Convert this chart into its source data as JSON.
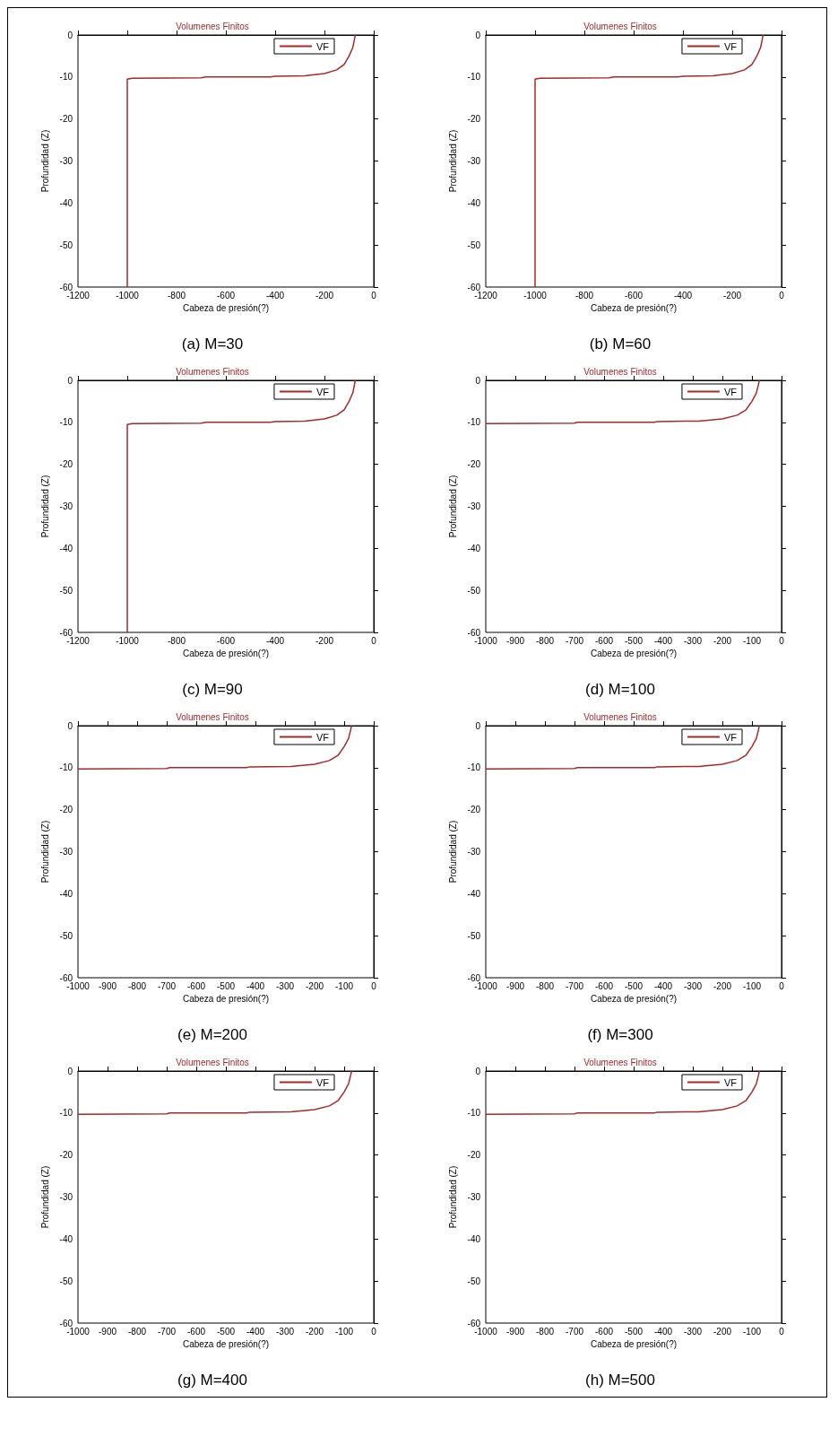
{
  "chart_data": [
    {
      "type": "line",
      "title": "Volumenes Finitos",
      "xlabel": "Cabeza de presión(?)",
      "ylabel": "Profundidad (Z)",
      "annotations": [
        "(a) M=30"
      ],
      "legend": "top right",
      "grid": false,
      "xlim": [
        -1200,
        0
      ],
      "xticks": [
        -1200,
        -1000,
        -800,
        -600,
        -400,
        -200,
        0
      ],
      "ylim": [
        -60,
        0
      ],
      "yticks": [
        -60,
        -50,
        -40,
        -30,
        -20,
        -10,
        0
      ],
      "series": [
        {
          "name": "VF",
          "color": "#a52a2a",
          "x": [
            -1000,
            -1000,
            -980,
            -700,
            -680,
            -420,
            -400,
            -280,
            -200,
            -150,
            -120,
            -100,
            -85,
            -78,
            -75
          ],
          "values": [
            -60,
            -10.5,
            -10.3,
            -10.2,
            -10,
            -10,
            -9.8,
            -9.7,
            -9.2,
            -8.3,
            -7,
            -5,
            -3,
            -1,
            0
          ]
        }
      ]
    },
    {
      "type": "line",
      "title": "Volumenes Finitos",
      "xlabel": "Cabeza de presión(?)",
      "ylabel": "Profundidad (Z)",
      "annotations": [
        "(b) M=60"
      ],
      "legend": "top right",
      "grid": false,
      "xlim": [
        -1200,
        0
      ],
      "xticks": [
        -1200,
        -1000,
        -800,
        -600,
        -400,
        -200,
        0
      ],
      "ylim": [
        -60,
        0
      ],
      "yticks": [
        -60,
        -50,
        -40,
        -30,
        -20,
        -10,
        0
      ],
      "series": [
        {
          "name": "VF",
          "color": "#a52a2a",
          "x": [
            -1000,
            -1000,
            -980,
            -700,
            -680,
            -420,
            -400,
            -280,
            -200,
            -150,
            -120,
            -100,
            -85,
            -78,
            -75
          ],
          "values": [
            -60,
            -10.5,
            -10.3,
            -10.2,
            -10,
            -10,
            -9.8,
            -9.7,
            -9.2,
            -8.3,
            -7,
            -5,
            -3,
            -1,
            0
          ]
        }
      ]
    },
    {
      "type": "line",
      "title": "Volumenes Finitos",
      "xlabel": "Cabeza de presión(?)",
      "ylabel": "Profundidad (Z)",
      "annotations": [
        "(c) M=90"
      ],
      "legend": "top right",
      "grid": false,
      "xlim": [
        -1200,
        0
      ],
      "xticks": [
        -1200,
        -1000,
        -800,
        -600,
        -400,
        -200,
        0
      ],
      "ylim": [
        -60,
        0
      ],
      "yticks": [
        -60,
        -50,
        -40,
        -30,
        -20,
        -10,
        0
      ],
      "series": [
        {
          "name": "VF",
          "color": "#a52a2a",
          "x": [
            -1000,
            -1000,
            -980,
            -700,
            -680,
            -420,
            -400,
            -280,
            -200,
            -150,
            -120,
            -100,
            -85,
            -78,
            -75
          ],
          "values": [
            -60,
            -10.5,
            -10.3,
            -10.2,
            -10,
            -10,
            -9.8,
            -9.7,
            -9.2,
            -8.3,
            -7,
            -5,
            -3,
            -1,
            0
          ]
        }
      ]
    },
    {
      "type": "line",
      "title": "Volumenes Finitos",
      "xlabel": "Cabeza de presión(?)",
      "ylabel": "Profundidad (Z)",
      "annotations": [
        "(d) M=100"
      ],
      "legend": "top right",
      "grid": false,
      "xlim": [
        -1000,
        0
      ],
      "xticks": [
        -1000,
        -900,
        -800,
        -700,
        -600,
        -500,
        -400,
        -300,
        -200,
        -100,
        0
      ],
      "ylim": [
        -60,
        0
      ],
      "yticks": [
        -60,
        -50,
        -40,
        -30,
        -20,
        -10,
        0
      ],
      "series": [
        {
          "name": "VF",
          "color": "#a52a2a",
          "x": [
            -1000,
            -700,
            -690,
            -430,
            -420,
            -280,
            -200,
            -150,
            -120,
            -100,
            -85,
            -78,
            -75
          ],
          "values": [
            -10.3,
            -10.2,
            -10,
            -10,
            -9.8,
            -9.7,
            -9.2,
            -8.3,
            -7,
            -5,
            -3,
            -1,
            0
          ]
        }
      ]
    },
    {
      "type": "line",
      "title": "Volumenes Finitos",
      "xlabel": "Cabeza de presión(?)",
      "ylabel": "Profundidad (Z)",
      "annotations": [
        "(e) M=200"
      ],
      "legend": "top right",
      "grid": false,
      "xlim": [
        -1000,
        0
      ],
      "xticks": [
        -1000,
        -900,
        -800,
        -700,
        -600,
        -500,
        -400,
        -300,
        -200,
        -100,
        0
      ],
      "ylim": [
        -60,
        0
      ],
      "yticks": [
        -60,
        -50,
        -40,
        -30,
        -20,
        -10,
        0
      ],
      "series": [
        {
          "name": "VF",
          "color": "#a52a2a",
          "x": [
            -1000,
            -700,
            -690,
            -430,
            -420,
            -280,
            -200,
            -150,
            -120,
            -100,
            -85,
            -78,
            -75
          ],
          "values": [
            -10.3,
            -10.2,
            -10,
            -10,
            -9.8,
            -9.7,
            -9.2,
            -8.3,
            -7,
            -5,
            -3,
            -1,
            0
          ]
        }
      ]
    },
    {
      "type": "line",
      "title": "Volumenes Finitos",
      "xlabel": "Cabeza de presión(?)",
      "ylabel": "Profundidad (Z)",
      "annotations": [
        "(f) M=300"
      ],
      "legend": "top right",
      "grid": false,
      "xlim": [
        -1000,
        0
      ],
      "xticks": [
        -1000,
        -900,
        -800,
        -700,
        -600,
        -500,
        -400,
        -300,
        -200,
        -100,
        0
      ],
      "ylim": [
        -60,
        0
      ],
      "yticks": [
        -60,
        -50,
        -40,
        -30,
        -20,
        -10,
        0
      ],
      "series": [
        {
          "name": "VF",
          "color": "#a52a2a",
          "x": [
            -1000,
            -700,
            -690,
            -430,
            -420,
            -280,
            -200,
            -150,
            -120,
            -100,
            -85,
            -78,
            -75
          ],
          "values": [
            -10.3,
            -10.2,
            -10,
            -10,
            -9.8,
            -9.7,
            -9.2,
            -8.3,
            -7,
            -5,
            -3,
            -1,
            0
          ]
        }
      ]
    },
    {
      "type": "line",
      "title": "Volumenes Finitos",
      "xlabel": "Cabeza de presión(?)",
      "ylabel": "Profundidad (Z)",
      "annotations": [
        "(g) M=400"
      ],
      "legend": "top right",
      "grid": false,
      "xlim": [
        -1000,
        0
      ],
      "xticks": [
        -1000,
        -900,
        -800,
        -700,
        -600,
        -500,
        -400,
        -300,
        -200,
        -100,
        0
      ],
      "ylim": [
        -60,
        0
      ],
      "yticks": [
        -60,
        -50,
        -40,
        -30,
        -20,
        -10,
        0
      ],
      "series": [
        {
          "name": "VF",
          "color": "#a52a2a",
          "x": [
            -1000,
            -700,
            -690,
            -430,
            -420,
            -280,
            -200,
            -150,
            -120,
            -100,
            -85,
            -78,
            -75
          ],
          "values": [
            -10.3,
            -10.2,
            -10,
            -10,
            -9.8,
            -9.7,
            -9.2,
            -8.3,
            -7,
            -5,
            -3,
            -1,
            0
          ]
        }
      ]
    },
    {
      "type": "line",
      "title": "Volumenes Finitos",
      "xlabel": "Cabeza de presión(?)",
      "ylabel": "Profundidad (Z)",
      "annotations": [
        "(h) M=500"
      ],
      "legend": "top right",
      "grid": false,
      "xlim": [
        -1000,
        0
      ],
      "xticks": [
        -1000,
        -900,
        -800,
        -700,
        -600,
        -500,
        -400,
        -300,
        -200,
        -100,
        0
      ],
      "ylim": [
        -60,
        0
      ],
      "yticks": [
        -60,
        -50,
        -40,
        -30,
        -20,
        -10,
        0
      ],
      "series": [
        {
          "name": "VF",
          "color": "#a52a2a",
          "x": [
            -1000,
            -700,
            -690,
            -430,
            -420,
            -280,
            -200,
            -150,
            -120,
            -100,
            -85,
            -78,
            -75
          ],
          "values": [
            -10.3,
            -10.2,
            -10,
            -10,
            -9.8,
            -9.7,
            -9.2,
            -8.3,
            -7,
            -5,
            -3,
            -1,
            0
          ]
        }
      ]
    }
  ]
}
